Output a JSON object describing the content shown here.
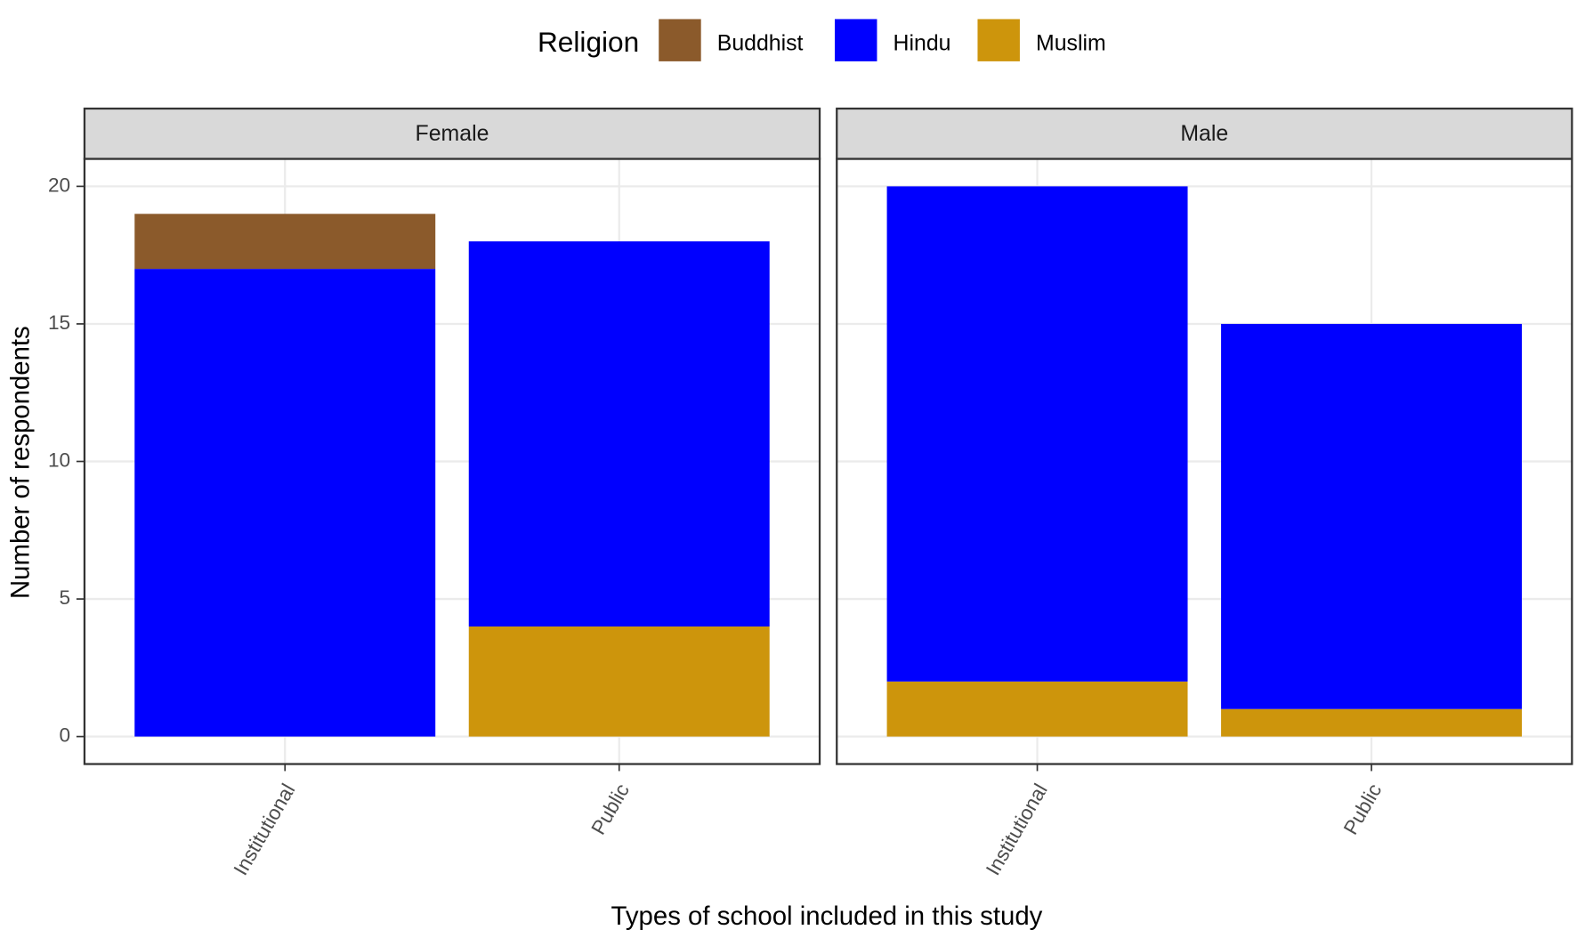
{
  "chart_data": {
    "type": "bar",
    "stacked": true,
    "legend_title": "Religion",
    "legend_position": "top",
    "xlabel": "Types of school included in this study",
    "ylabel": "Number of respondents",
    "categories": [
      "Institutional",
      "Public"
    ],
    "ylim": [
      -1,
      21
    ],
    "yticks": [
      0,
      5,
      10,
      15,
      20
    ],
    "grid": true,
    "series": [
      {
        "name": "Buddhist",
        "color": "#8b5a2b"
      },
      {
        "name": "Hindu",
        "color": "#0000ff"
      },
      {
        "name": "Muslim",
        "color": "#cd950c"
      }
    ],
    "facets": [
      {
        "title": "Female",
        "values": [
          [
            2,
            0
          ],
          [
            17,
            14
          ],
          [
            0,
            4
          ]
        ]
      },
      {
        "title": "Male",
        "values": [
          [
            0,
            0
          ],
          [
            18,
            14
          ],
          [
            2,
            1
          ]
        ]
      }
    ]
  }
}
